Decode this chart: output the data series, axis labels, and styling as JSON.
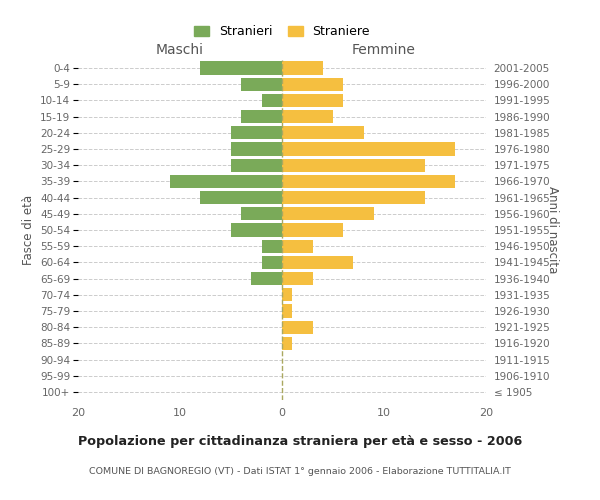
{
  "age_groups": [
    "100+",
    "95-99",
    "90-94",
    "85-89",
    "80-84",
    "75-79",
    "70-74",
    "65-69",
    "60-64",
    "55-59",
    "50-54",
    "45-49",
    "40-44",
    "35-39",
    "30-34",
    "25-29",
    "20-24",
    "15-19",
    "10-14",
    "5-9",
    "0-4"
  ],
  "birth_years": [
    "≤ 1905",
    "1906-1910",
    "1911-1915",
    "1916-1920",
    "1921-1925",
    "1926-1930",
    "1931-1935",
    "1936-1940",
    "1941-1945",
    "1946-1950",
    "1951-1955",
    "1956-1960",
    "1961-1965",
    "1966-1970",
    "1971-1975",
    "1976-1980",
    "1981-1985",
    "1986-1990",
    "1991-1995",
    "1996-2000",
    "2001-2005"
  ],
  "maschi": [
    0,
    0,
    0,
    0,
    0,
    0,
    0,
    3,
    2,
    2,
    5,
    4,
    8,
    11,
    5,
    5,
    5,
    4,
    2,
    4,
    8
  ],
  "femmine": [
    0,
    0,
    0,
    1,
    3,
    1,
    1,
    3,
    7,
    3,
    6,
    9,
    14,
    17,
    14,
    17,
    8,
    5,
    6,
    6,
    4
  ],
  "color_maschi": "#7aaa59",
  "color_femmine": "#f5bf40",
  "title": "Popolazione per cittadinanza straniera per età e sesso - 2006",
  "subtitle": "COMUNE DI BAGNOREGIO (VT) - Dati ISTAT 1° gennaio 2006 - Elaborazione TUTTITALIA.IT",
  "xlabel_left": "Maschi",
  "xlabel_right": "Femmine",
  "ylabel_left": "Fasce di età",
  "ylabel_right": "Anni di nascita",
  "legend_maschi": "Stranieri",
  "legend_femmine": "Straniere",
  "xlim": 20,
  "background_color": "#ffffff",
  "grid_color": "#cccccc"
}
